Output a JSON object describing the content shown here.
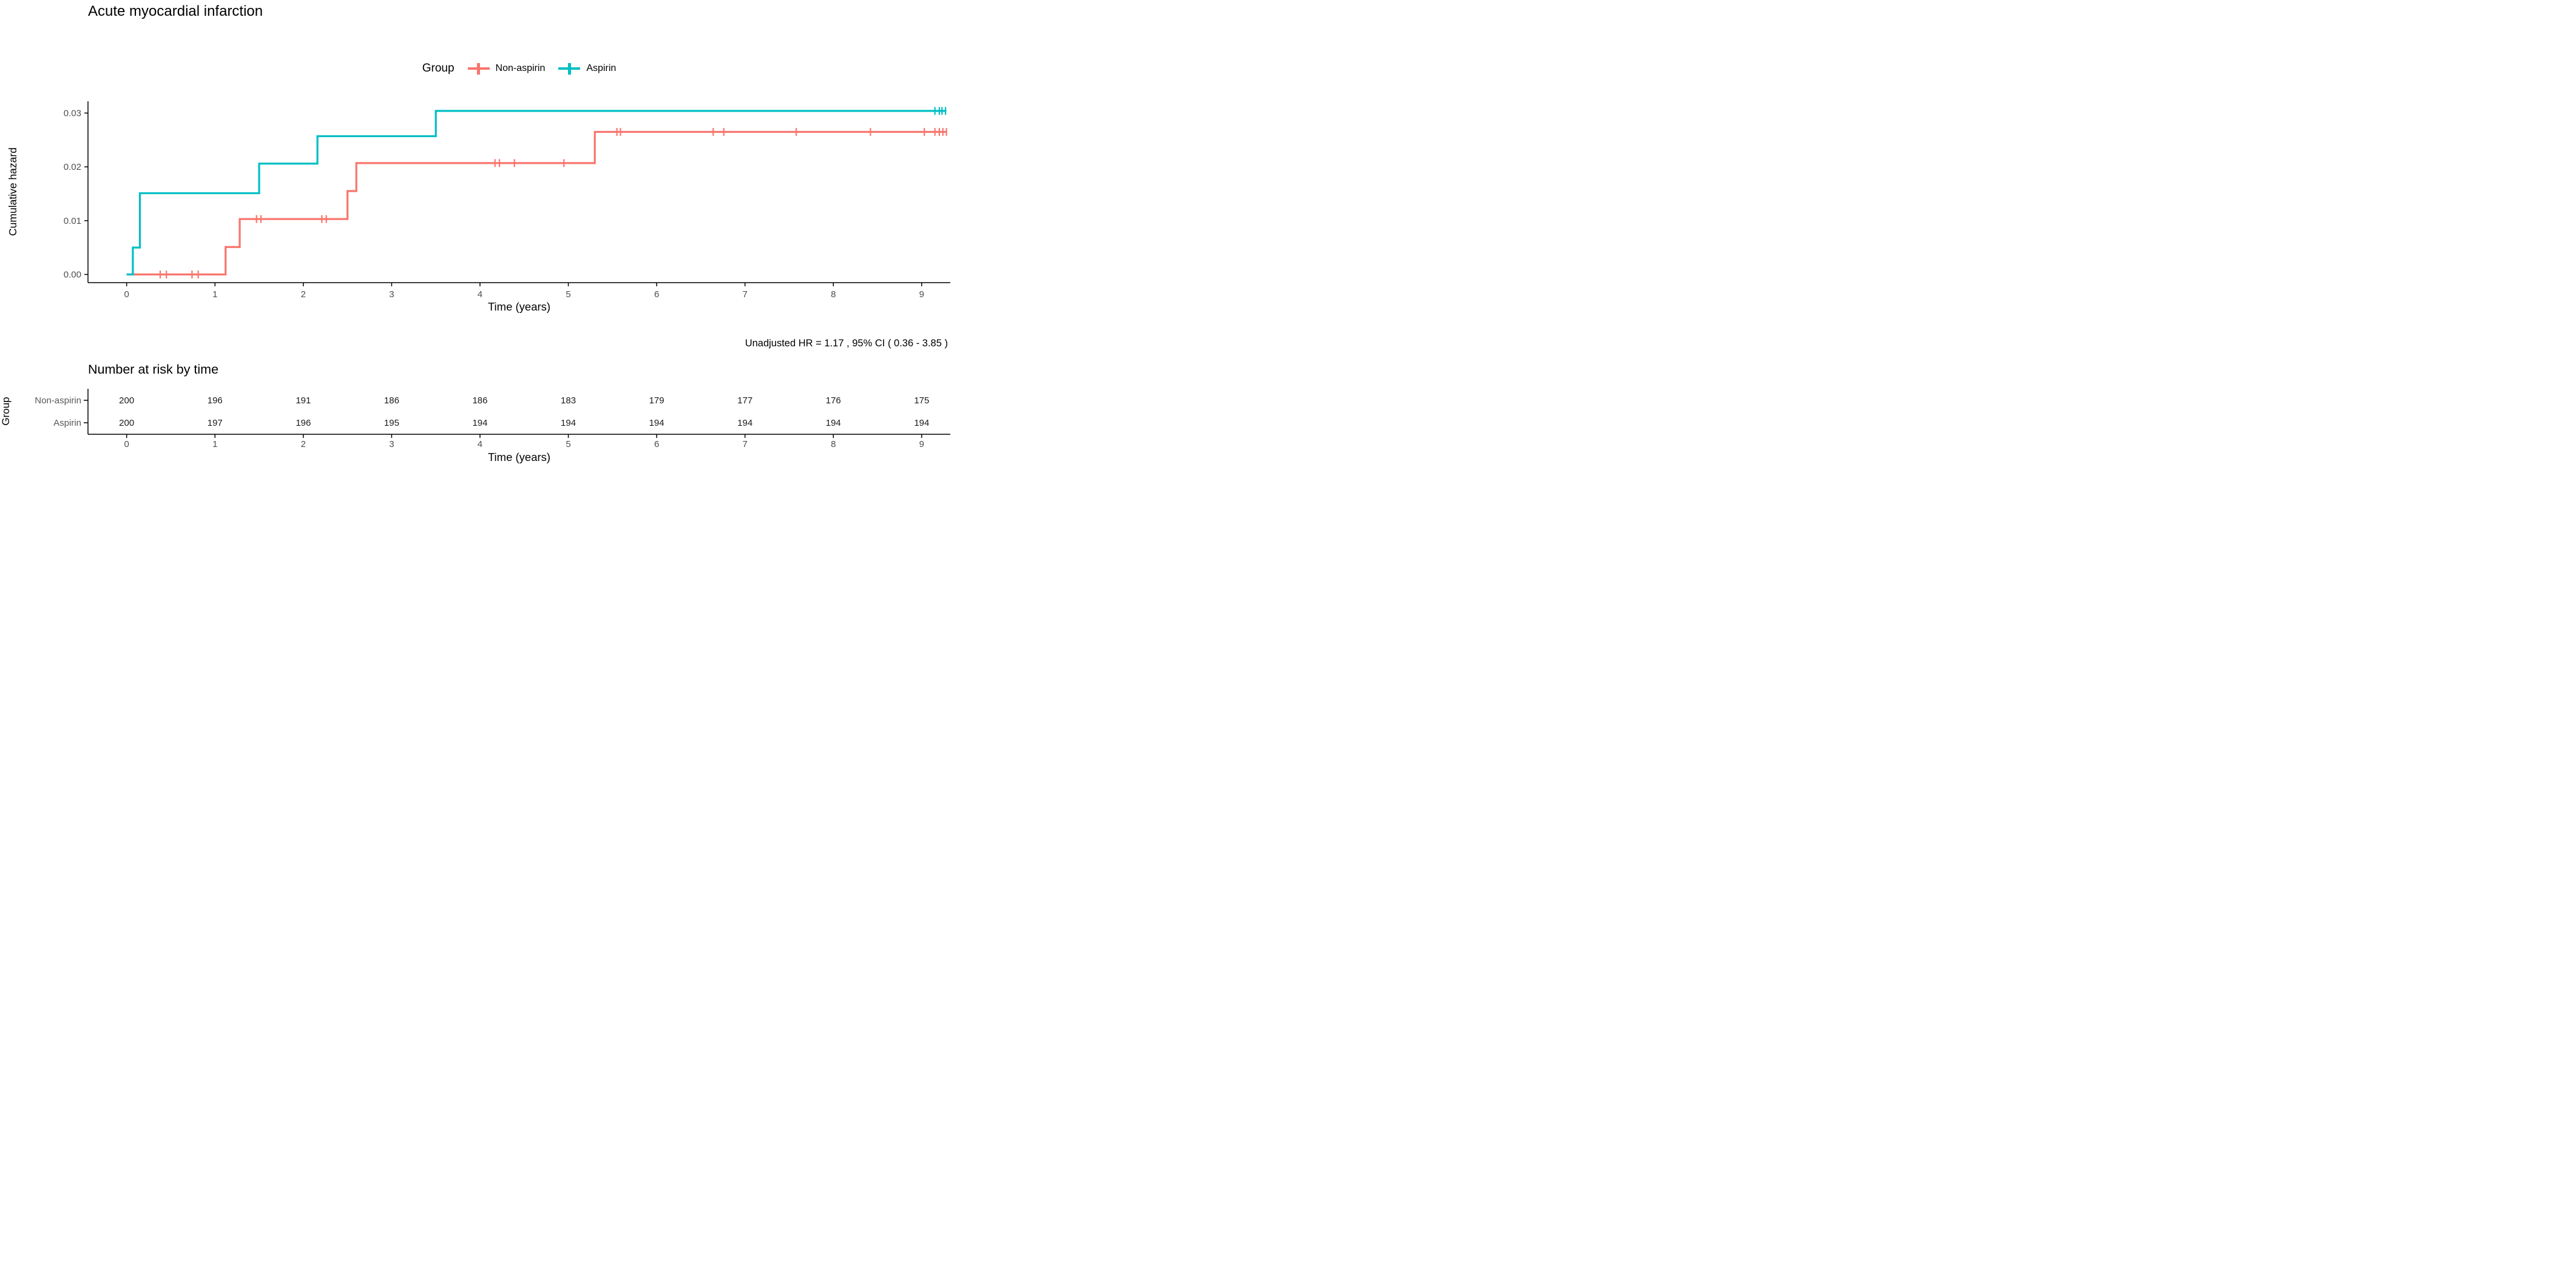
{
  "figure": {
    "title": "Acute myocardial infarction",
    "annotation": "Unadjusted HR = 1.17 , 95% CI ( 0.36 - 3.85 )",
    "risk_table_title": "Number at risk by time"
  },
  "legend": {
    "title": "Group",
    "items": [
      {
        "label": "Non-aspirin",
        "color": "#F8766D",
        "key_icon": "plus-cross-icon"
      },
      {
        "label": "Aspirin",
        "color": "#00BFC4",
        "key_icon": "plus-cross-icon"
      }
    ]
  },
  "chart_data": {
    "type": "line",
    "subtype": "step-function-cumulative-hazard",
    "title": "Acute myocardial infarction",
    "xlabel": "Time (years)",
    "ylabel": "Cumulative hazard",
    "legend_title": "Group",
    "legend_position": "top",
    "grid": false,
    "x_ticks": [
      0,
      1,
      2,
      3,
      4,
      5,
      6,
      7,
      8,
      9
    ],
    "y_ticks": [
      {
        "v": 0.0,
        "label": "0.00"
      },
      {
        "v": 0.01,
        "label": "0.01"
      },
      {
        "v": 0.02,
        "label": "0.02"
      },
      {
        "v": 0.03,
        "label": "0.03"
      }
    ],
    "xlim": [
      -0.44,
      9.33
    ],
    "ylim": [
      0,
      0.0335
    ],
    "x_end": 9.28,
    "series": [
      {
        "name": "Non-aspirin",
        "color": "#F8766D",
        "start": [
          0,
          0
        ],
        "steps": [
          [
            1.12,
            0.0051
          ],
          [
            1.28,
            0.0103
          ],
          [
            2.5,
            0.0155
          ],
          [
            2.6,
            0.0207
          ],
          [
            5.3,
            0.0265
          ]
        ],
        "censors": [
          [
            0.38,
            0
          ],
          [
            0.45,
            0
          ],
          [
            0.74,
            0
          ],
          [
            0.81,
            0
          ],
          [
            1.47,
            0.0103
          ],
          [
            1.52,
            0.0103
          ],
          [
            2.21,
            0.0103
          ],
          [
            2.26,
            0.0103
          ],
          [
            4.17,
            0.0207
          ],
          [
            4.22,
            0.0207
          ],
          [
            4.39,
            0.0207
          ],
          [
            4.95,
            0.0207
          ],
          [
            5.55,
            0.0265
          ],
          [
            5.59,
            0.0265
          ],
          [
            6.64,
            0.0265
          ],
          [
            6.76,
            0.0265
          ],
          [
            7.58,
            0.0265
          ],
          [
            8.42,
            0.0265
          ],
          [
            9.03,
            0.0265
          ],
          [
            9.15,
            0.0265
          ],
          [
            9.2,
            0.0265
          ],
          [
            9.24,
            0.0265
          ],
          [
            9.28,
            0.0265
          ]
        ]
      },
      {
        "name": "Aspirin",
        "color": "#00BFC4",
        "start": [
          0,
          0
        ],
        "steps": [
          [
            0.07,
            0.005
          ],
          [
            0.15,
            0.0151
          ],
          [
            1.5,
            0.0206
          ],
          [
            2.16,
            0.0257
          ],
          [
            3.5,
            0.0304
          ]
        ],
        "censors": [
          [
            9.15,
            0.0304
          ],
          [
            9.2,
            0.0304
          ],
          [
            9.23,
            0.0304
          ],
          [
            9.27,
            0.0304
          ]
        ]
      }
    ],
    "annotation": "Unadjusted HR = 1.17 , 95% CI ( 0.36 - 3.85 )",
    "risk_table": {
      "title": "Number at risk by time",
      "ylabel": "Group",
      "xlabel": "Time (years)",
      "times": [
        0,
        1,
        2,
        3,
        4,
        5,
        6,
        7,
        8,
        9
      ],
      "rows": [
        {
          "name": "Non-aspirin",
          "values": [
            200,
            196,
            191,
            186,
            186,
            183,
            179,
            177,
            176,
            175
          ]
        },
        {
          "name": "Aspirin",
          "values": [
            200,
            197,
            196,
            195,
            194,
            194,
            194,
            194,
            194,
            194
          ]
        }
      ]
    }
  }
}
